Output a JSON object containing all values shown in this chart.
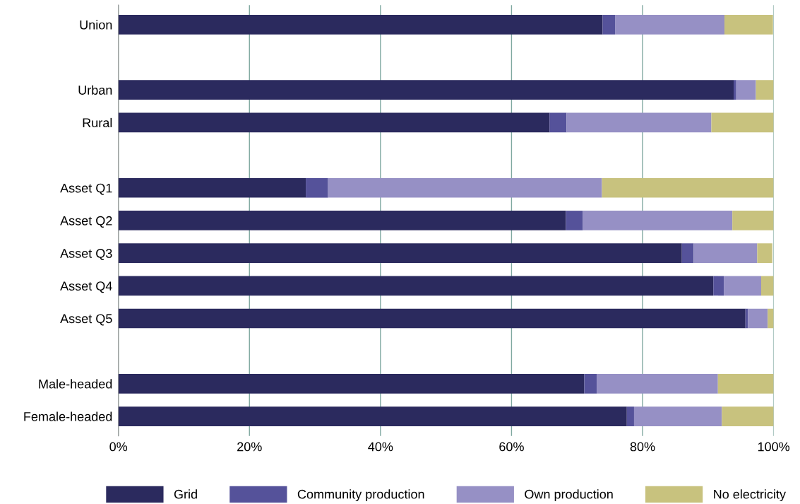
{
  "chart_data": {
    "type": "bar",
    "orientation": "horizontal",
    "stacked": true,
    "categories": [
      "Union",
      null,
      "Urban",
      "Rural",
      null,
      "Asset Q1",
      "Asset Q2",
      "Asset Q3",
      "Asset Q4",
      "Asset Q5",
      null,
      "Male-headed",
      "Female-headed"
    ],
    "series": [
      {
        "name": "Grid",
        "color": "#2b2a5e",
        "values": [
          73.9,
          null,
          93.9,
          65.8,
          null,
          28.6,
          68.3,
          86.0,
          90.8,
          95.7,
          null,
          71.1,
          77.6
        ]
      },
      {
        "name": "Community production",
        "color": "#55529a",
        "values": [
          1.9,
          null,
          0.4,
          2.6,
          null,
          3.4,
          2.6,
          1.8,
          1.6,
          0.4,
          null,
          1.9,
          1.1
        ]
      },
      {
        "name": "Own production",
        "color": "#9690c5",
        "values": [
          16.7,
          null,
          3.0,
          22.1,
          null,
          41.8,
          22.8,
          9.7,
          5.7,
          3.0,
          null,
          18.5,
          13.4
        ]
      },
      {
        "name": "No electricity",
        "color": "#c8c27e",
        "values": [
          7.4,
          null,
          2.7,
          9.5,
          null,
          26.2,
          6.3,
          2.3,
          1.9,
          0.9,
          null,
          8.5,
          7.9
        ]
      }
    ],
    "xlim": [
      0,
      100
    ],
    "xticks": [
      {
        "value": 0,
        "label": "0%"
      },
      {
        "value": 20,
        "label": "20%"
      },
      {
        "value": 40,
        "label": "40%"
      },
      {
        "value": 60,
        "label": "60%"
      },
      {
        "value": 80,
        "label": "80%"
      },
      {
        "value": 100,
        "label": "100%"
      }
    ],
    "grid": "x",
    "legend": "bottom"
  }
}
